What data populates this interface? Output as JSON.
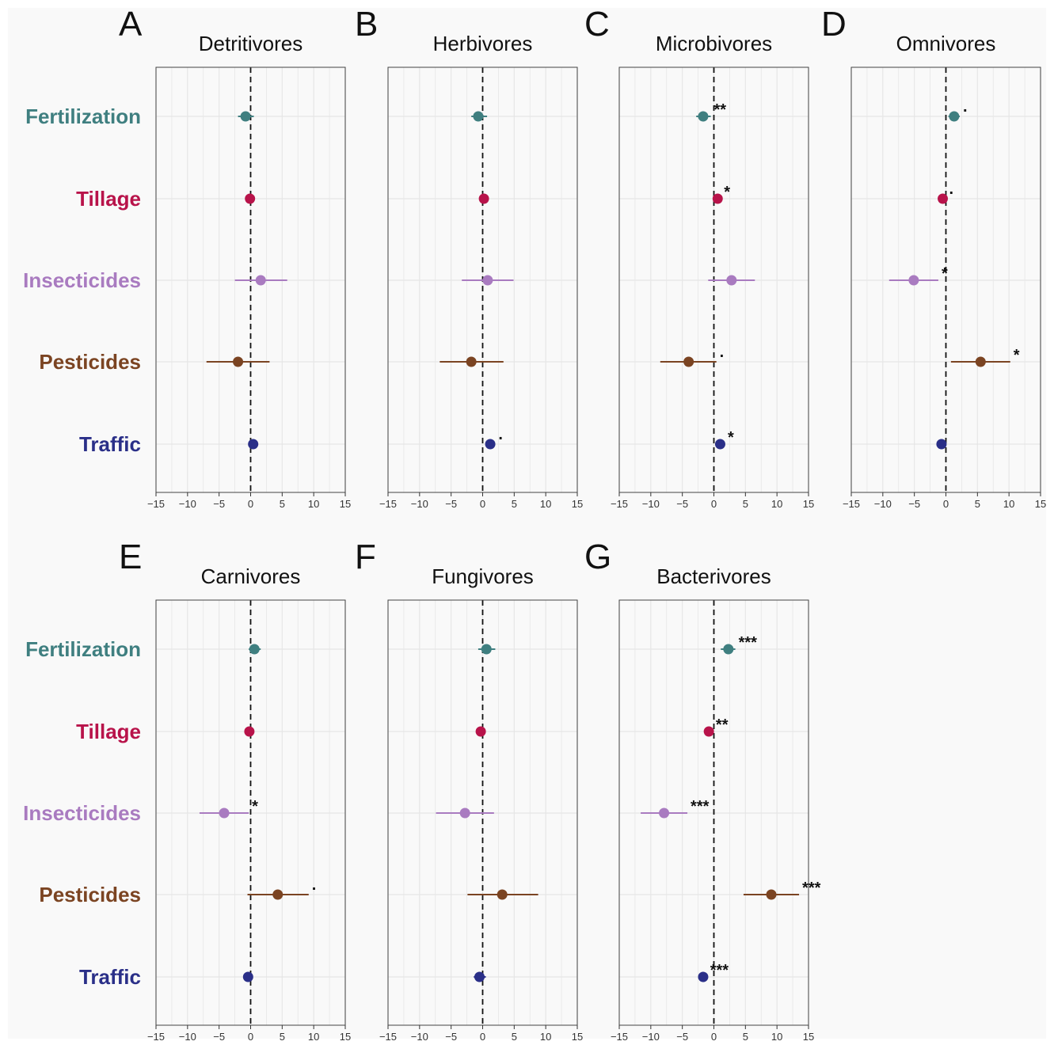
{
  "figure": {
    "background": "#f9f9f9",
    "grid_color": "#e6e6e6",
    "panel_border": "#444444"
  },
  "chart_data": {
    "type": "scatter",
    "subtype": "dot-and-whisker (coefficient plot)",
    "rows": [
      {
        "name": "Fertilization",
        "color": "#3f7f80"
      },
      {
        "name": "Tillage",
        "color": "#b8134a"
      },
      {
        "name": "Insecticides",
        "color": "#a97bc0"
      },
      {
        "name": "Pesticides",
        "color": "#7b4422"
      },
      {
        "name": "Traffic",
        "color": "#2a2f88"
      }
    ],
    "x_range": [
      -15,
      15
    ],
    "x_ticks": [
      -15,
      -10,
      -5,
      0,
      5,
      10,
      15
    ],
    "x_tick_labels": [
      "−15",
      "−10",
      "−5",
      "0",
      "5",
      "10",
      "15"
    ],
    "reference_line": 0,
    "grid": true,
    "panels": [
      {
        "letter": "A",
        "title": "Detritivores",
        "points": [
          {
            "row": "Fertilization",
            "estimate": -0.8,
            "ci": [
              -2.0,
              0.5
            ],
            "sig": ""
          },
          {
            "row": "Tillage",
            "estimate": -0.1,
            "ci": [
              -0.4,
              0.2
            ],
            "sig": ""
          },
          {
            "row": "Insecticides",
            "estimate": 1.6,
            "ci": [
              -2.5,
              5.8
            ],
            "sig": ""
          },
          {
            "row": "Pesticides",
            "estimate": -2.0,
            "ci": [
              -7.0,
              3.0
            ],
            "sig": ""
          },
          {
            "row": "Traffic",
            "estimate": 0.4,
            "ci": [
              -0.3,
              1.2
            ],
            "sig": ""
          }
        ]
      },
      {
        "letter": "B",
        "title": "Herbivores",
        "points": [
          {
            "row": "Fertilization",
            "estimate": -0.7,
            "ci": [
              -1.8,
              0.7
            ],
            "sig": ""
          },
          {
            "row": "Tillage",
            "estimate": 0.2,
            "ci": [
              -0.2,
              0.6
            ],
            "sig": ""
          },
          {
            "row": "Insecticides",
            "estimate": 0.8,
            "ci": [
              -3.3,
              4.9
            ],
            "sig": ""
          },
          {
            "row": "Pesticides",
            "estimate": -1.8,
            "ci": [
              -6.8,
              3.3
            ],
            "sig": ""
          },
          {
            "row": "Traffic",
            "estimate": 1.2,
            "ci": [
              0.5,
              2.0
            ],
            "sig": "."
          }
        ]
      },
      {
        "letter": "C",
        "title": "Microbivores",
        "points": [
          {
            "row": "Fertilization",
            "estimate": -1.7,
            "ci": [
              -2.8,
              -0.5
            ],
            "sig": "**"
          },
          {
            "row": "Tillage",
            "estimate": 0.6,
            "ci": [
              0.1,
              1.1
            ],
            "sig": "*"
          },
          {
            "row": "Insecticides",
            "estimate": 2.8,
            "ci": [
              -0.9,
              6.5
            ],
            "sig": ""
          },
          {
            "row": "Pesticides",
            "estimate": -4.0,
            "ci": [
              -8.5,
              0.4
            ],
            "sig": "."
          },
          {
            "row": "Traffic",
            "estimate": 1.0,
            "ci": [
              0.2,
              1.7
            ],
            "sig": "*"
          }
        ]
      },
      {
        "letter": "D",
        "title": "Omnivores",
        "points": [
          {
            "row": "Fertilization",
            "estimate": 1.3,
            "ci": [
              0.4,
              2.2
            ],
            "sig": "."
          },
          {
            "row": "Tillage",
            "estimate": -0.5,
            "ci": [
              -1.0,
              0.0
            ],
            "sig": "."
          },
          {
            "row": "Insecticides",
            "estimate": -5.1,
            "ci": [
              -9.0,
              -1.2
            ],
            "sig": "*"
          },
          {
            "row": "Pesticides",
            "estimate": 5.5,
            "ci": [
              0.8,
              10.2
            ],
            "sig": "*"
          },
          {
            "row": "Traffic",
            "estimate": -0.7,
            "ci": [
              -1.3,
              -0.1
            ],
            "sig": ""
          }
        ]
      },
      {
        "letter": "E",
        "title": "Carnivores",
        "points": [
          {
            "row": "Fertilization",
            "estimate": 0.6,
            "ci": [
              -0.3,
              1.6
            ],
            "sig": ""
          },
          {
            "row": "Tillage",
            "estimate": -0.2,
            "ci": [
              -0.5,
              0.2
            ],
            "sig": ""
          },
          {
            "row": "Insecticides",
            "estimate": -4.2,
            "ci": [
              -8.1,
              -0.3
            ],
            "sig": "*"
          },
          {
            "row": "Pesticides",
            "estimate": 4.3,
            "ci": [
              -0.5,
              9.2
            ],
            "sig": "."
          },
          {
            "row": "Traffic",
            "estimate": -0.4,
            "ci": [
              -1.1,
              0.3
            ],
            "sig": ""
          }
        ]
      },
      {
        "letter": "F",
        "title": "Fungivores",
        "points": [
          {
            "row": "Fertilization",
            "estimate": 0.6,
            "ci": [
              -0.7,
              2.0
            ],
            "sig": ""
          },
          {
            "row": "Tillage",
            "estimate": -0.3,
            "ci": [
              -0.7,
              0.1
            ],
            "sig": ""
          },
          {
            "row": "Insecticides",
            "estimate": -2.8,
            "ci": [
              -7.4,
              1.8
            ],
            "sig": ""
          },
          {
            "row": "Pesticides",
            "estimate": 3.1,
            "ci": [
              -2.4,
              8.8
            ],
            "sig": ""
          },
          {
            "row": "Traffic",
            "estimate": -0.5,
            "ci": [
              -1.4,
              0.5
            ],
            "sig": ""
          }
        ]
      },
      {
        "letter": "G",
        "title": "Bacterivores",
        "points": [
          {
            "row": "Fertilization",
            "estimate": 2.3,
            "ci": [
              1.1,
              3.4
            ],
            "sig": "***"
          },
          {
            "row": "Tillage",
            "estimate": -0.8,
            "ci": [
              -1.4,
              -0.2
            ],
            "sig": "**"
          },
          {
            "row": "Insecticides",
            "estimate": -7.9,
            "ci": [
              -11.6,
              -4.2
            ],
            "sig": "***"
          },
          {
            "row": "Pesticides",
            "estimate": 9.1,
            "ci": [
              4.7,
              13.5
            ],
            "sig": "***"
          },
          {
            "row": "Traffic",
            "estimate": -1.7,
            "ci": [
              -2.2,
              -1.1
            ],
            "sig": "***"
          }
        ]
      }
    ]
  }
}
